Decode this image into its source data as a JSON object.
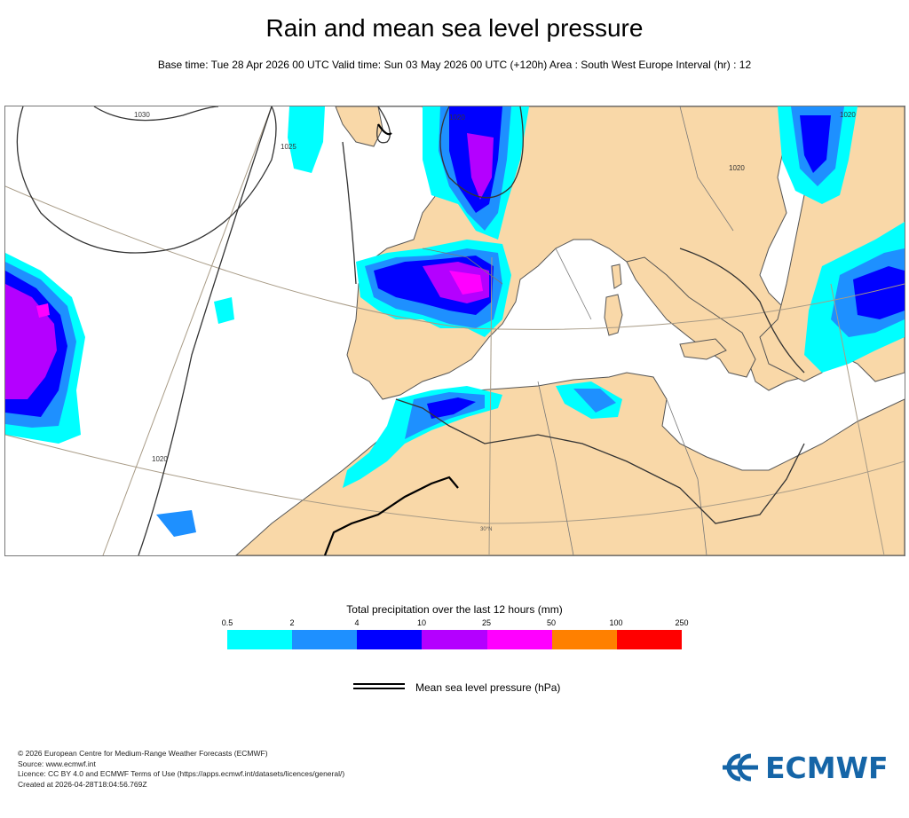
{
  "header": {
    "title": "Rain and mean sea level pressure",
    "subtitle": "Base time: Tue 28 Apr 2026 00 UTC Valid time: Sun 03 May 2026 00 UTC (+120h) Area : South West Europe Interval (hr) : 12"
  },
  "map": {
    "isobar_labels": [
      "1030",
      "1025",
      "1020",
      "1020",
      "1020",
      "1020"
    ],
    "lat_label": "30°N",
    "land_color": "#f9d8a8",
    "sea_color": "#ffffff"
  },
  "legend": {
    "title": "Total precipitation over the last 12 hours (mm)",
    "ticks": [
      "0.5",
      "2",
      "4",
      "10",
      "25",
      "50",
      "100",
      "250"
    ],
    "colors": [
      "#00ffff",
      "#1e90ff",
      "#0000ff",
      "#b400ff",
      "#ff00ff",
      "#ff8000",
      "#ff0000"
    ],
    "pressure_label": "Mean sea level pressure (hPa)"
  },
  "footer": {
    "lines": [
      "© 2026 European Centre for Medium-Range Weather Forecasts (ECMWF)",
      "Source: www.ecmwf.int",
      "Licence: CC BY 4.0 and ECMWF Terms of Use (https://apps.ecmwf.int/datasets/licences/general/)",
      "Created at 2026-04-28T18:04:56.769Z"
    ]
  },
  "logo": {
    "text": "ECMWF"
  }
}
